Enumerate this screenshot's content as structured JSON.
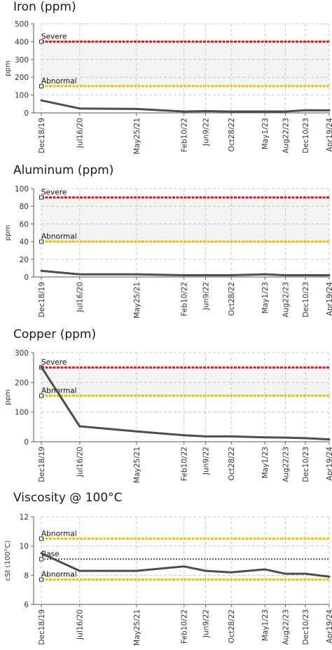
{
  "chart_data": [
    {
      "type": "line",
      "title": "Iron (ppm)",
      "ylabel": "ppm",
      "ylim": [
        0,
        500
      ],
      "yticks": [
        0,
        100,
        200,
        300,
        400,
        500
      ],
      "categories": [
        "Dec18/19",
        "Jul16/20",
        "May25/21",
        "Feb10/22",
        "Jun9/22",
        "Oct28/22",
        "May1/23",
        "Aug22/23",
        "Dec10/23",
        "Apr19/24"
      ],
      "x_dates": [
        "2019-12-18",
        "2020-07-16",
        "2021-05-25",
        "2022-02-10",
        "2022-06-09",
        "2022-10-28",
        "2023-05-01",
        "2023-08-22",
        "2023-12-10",
        "2024-04-19"
      ],
      "values": [
        70,
        25,
        22,
        8,
        10,
        8,
        8,
        8,
        15,
        14
      ],
      "reference_lines": [
        {
          "label": "Severe",
          "value": 400,
          "color": "#e8141e"
        },
        {
          "label": "Abnormal",
          "value": 150,
          "color": "#f0c000"
        }
      ],
      "grid": true
    },
    {
      "type": "line",
      "title": "Aluminum (ppm)",
      "ylabel": "ppm",
      "ylim": [
        0,
        100
      ],
      "yticks": [
        0,
        20,
        40,
        60,
        80,
        100
      ],
      "categories": [
        "Dec18/19",
        "Jul16/20",
        "May25/21",
        "Feb10/22",
        "Jun9/22",
        "Oct28/22",
        "May1/23",
        "Aug22/23",
        "Dec10/23",
        "Apr19/24"
      ],
      "x_dates": [
        "2019-12-18",
        "2020-07-16",
        "2021-05-25",
        "2022-02-10",
        "2022-06-09",
        "2022-10-28",
        "2023-05-01",
        "2023-08-22",
        "2023-12-10",
        "2024-04-19"
      ],
      "values": [
        7,
        3,
        3,
        2,
        2,
        2,
        3,
        2,
        2,
        2
      ],
      "reference_lines": [
        {
          "label": "Severe",
          "value": 90,
          "color": "#e8141e"
        },
        {
          "label": "Abnormal",
          "value": 40,
          "color": "#f0c000"
        }
      ],
      "grid": true
    },
    {
      "type": "line",
      "title": "Copper (ppm)",
      "ylabel": "ppm",
      "ylim": [
        0,
        300
      ],
      "yticks": [
        0,
        100,
        200,
        300
      ],
      "categories": [
        "Dec18/19",
        "Jul16/20",
        "May25/21",
        "Feb10/22",
        "Jun9/22",
        "Oct28/22",
        "May1/23",
        "Aug22/23",
        "Dec10/23",
        "Apr19/24"
      ],
      "x_dates": [
        "2019-12-18",
        "2020-07-16",
        "2021-05-25",
        "2022-02-10",
        "2022-06-09",
        "2022-10-28",
        "2023-05-01",
        "2023-08-22",
        "2023-12-10",
        "2024-04-19"
      ],
      "values": [
        252,
        52,
        35,
        22,
        18,
        18,
        15,
        14,
        12,
        8
      ],
      "reference_lines": [
        {
          "label": "Severe",
          "value": 250,
          "color": "#e8141e"
        },
        {
          "label": "Abnormal",
          "value": 155,
          "color": "#f0c000"
        }
      ],
      "grid": true
    },
    {
      "type": "line",
      "title": "Viscosity @ 100°C",
      "ylabel": "cSt (100°C)",
      "ylim": [
        6,
        12
      ],
      "yticks": [
        6,
        8,
        10,
        12
      ],
      "categories": [
        "Dec18/19",
        "Jul16/20",
        "May25/21",
        "Feb10/22",
        "Jun9/22",
        "Oct28/22",
        "May1/23",
        "Aug22/23",
        "Dec10/23",
        "Apr19/24"
      ],
      "x_dates": [
        "2019-12-18",
        "2020-07-16",
        "2021-05-25",
        "2022-02-10",
        "2022-06-09",
        "2022-10-28",
        "2023-05-01",
        "2023-08-22",
        "2023-12-10",
        "2024-04-19"
      ],
      "values": [
        9.5,
        8.3,
        8.3,
        8.6,
        8.3,
        8.2,
        8.4,
        8.1,
        8.1,
        7.9
      ],
      "reference_lines": [
        {
          "label": "Abnormal",
          "value": 10.5,
          "color": "#f0c000"
        },
        {
          "label": "Base",
          "value": 9.1,
          "color": "#555555",
          "style": "dotted"
        },
        {
          "label": "Abnormal",
          "value": 7.7,
          "color": "#f0c000"
        }
      ],
      "grid": true
    }
  ]
}
